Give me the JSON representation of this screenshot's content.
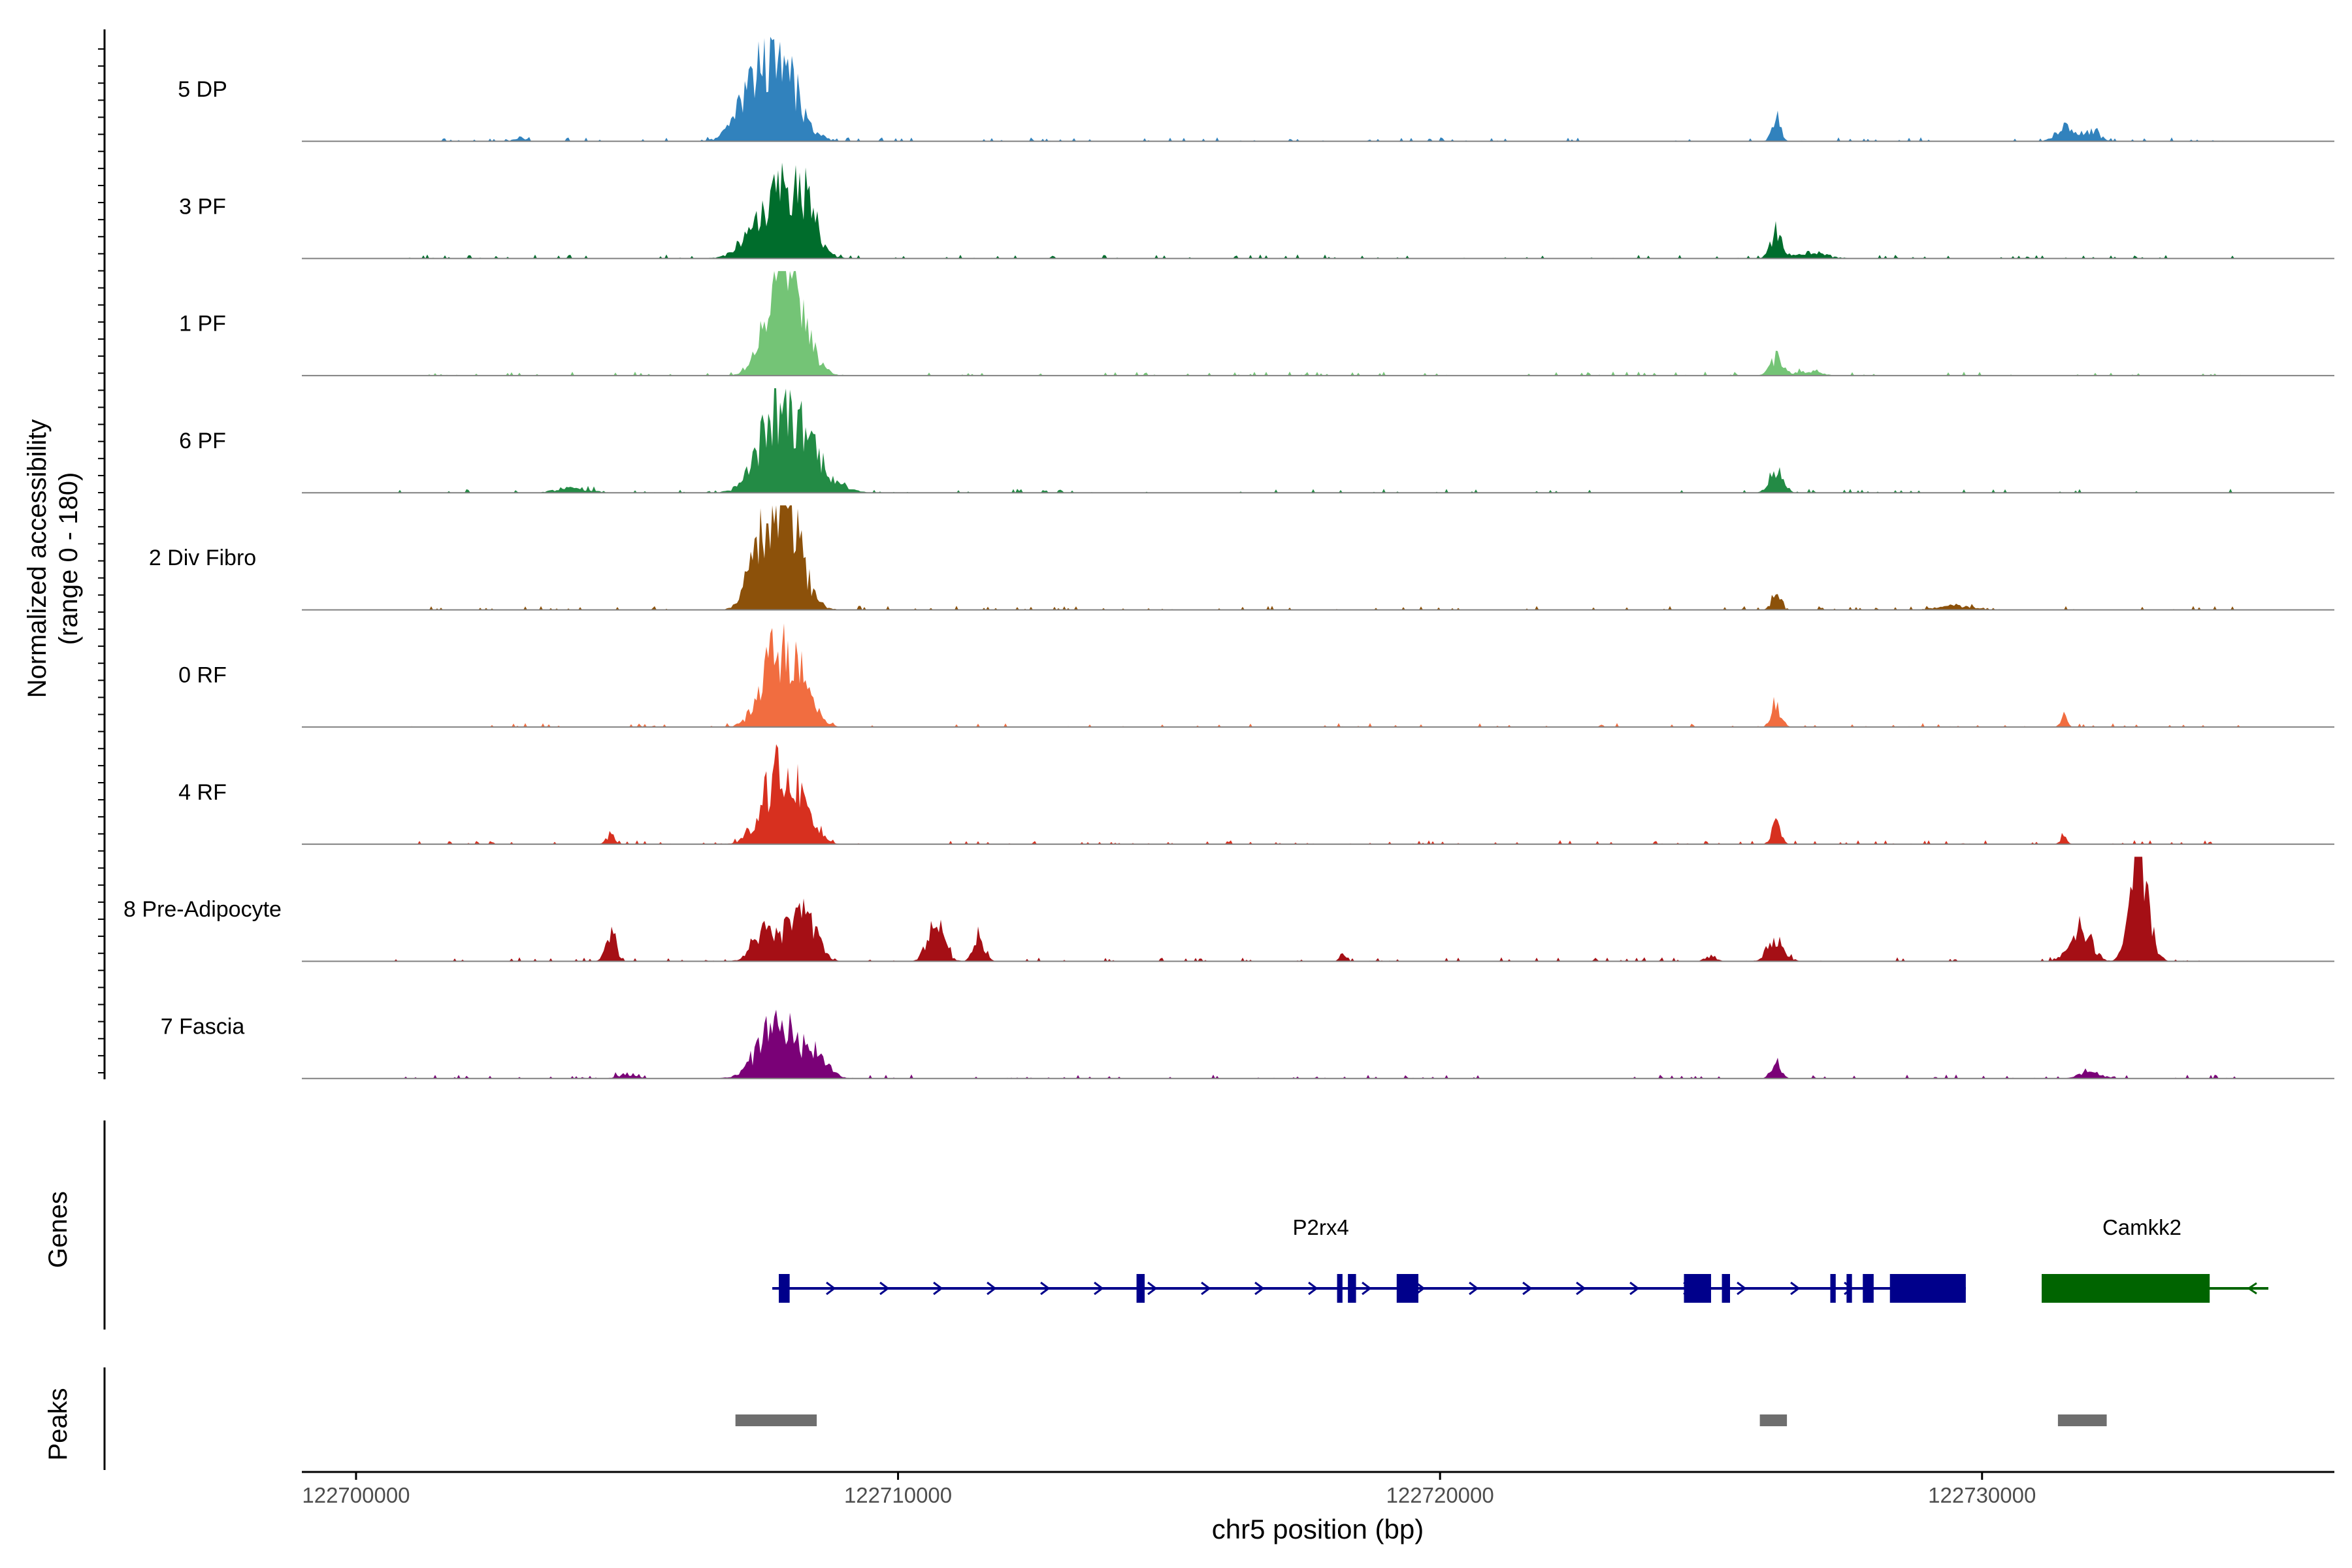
{
  "chart_data": {
    "type": "area",
    "title": "",
    "xlabel": "chr5 position (bp)",
    "ylabel_line1": "Normalized accessibility",
    "ylabel_line2": "(range 0 - 180)",
    "ylim": [
      0,
      180
    ],
    "xlim": [
      122699000,
      122736500
    ],
    "x_ticks": [
      "122700000",
      "122710000",
      "122720000",
      "122730000"
    ],
    "x_tick_values": [
      122700000,
      122710000,
      122720000,
      122730000
    ],
    "track_labels": {
      "genes": "Genes",
      "peaks": "Peaks"
    },
    "series": [
      {
        "name": "5 DP",
        "color": "#3182bd",
        "peaks": [
          [
            122707800,
            130,
            350
          ],
          [
            122707300,
            60,
            300
          ],
          [
            122726200,
            40,
            80
          ],
          [
            122731500,
            25,
            150
          ],
          [
            122732000,
            20,
            150
          ],
          [
            122703000,
            8,
            80
          ]
        ]
      },
      {
        "name": "3 PF",
        "color": "#006d2c",
        "peaks": [
          [
            122707800,
            110,
            400
          ],
          [
            122708300,
            60,
            200
          ],
          [
            122726200,
            45,
            100
          ],
          [
            122726800,
            10,
            300
          ]
        ]
      },
      {
        "name": "1 PF",
        "color": "#74c476",
        "peaks": [
          [
            122707800,
            150,
            280
          ],
          [
            122708200,
            70,
            250
          ],
          [
            122726200,
            30,
            120
          ],
          [
            122726800,
            8,
            200
          ]
        ]
      },
      {
        "name": "6 PF",
        "color": "#238b45",
        "peaks": [
          [
            122707800,
            140,
            350
          ],
          [
            122708400,
            60,
            250
          ],
          [
            122726200,
            40,
            120
          ],
          [
            122704000,
            8,
            300
          ],
          [
            122709000,
            10,
            200
          ]
        ]
      },
      {
        "name": "2 Div Fibro",
        "color": "#8c510a",
        "peaks": [
          [
            122707900,
            170,
            300
          ],
          [
            122707500,
            80,
            250
          ],
          [
            122726200,
            30,
            80
          ],
          [
            122729500,
            8,
            300
          ]
        ]
      },
      {
        "name": "0 RF",
        "color": "#f16d40",
        "peaks": [
          [
            122707800,
            130,
            300
          ],
          [
            122708300,
            50,
            200
          ],
          [
            122726200,
            40,
            90
          ],
          [
            122731500,
            20,
            60
          ]
        ]
      },
      {
        "name": "4 RF",
        "color": "#d7301f",
        "peaks": [
          [
            122707800,
            120,
            300
          ],
          [
            122708300,
            50,
            200
          ],
          [
            122704700,
            15,
            80
          ],
          [
            122726200,
            35,
            80
          ],
          [
            122731500,
            15,
            60
          ]
        ]
      },
      {
        "name": "8 Pre-Adipocyte",
        "color": "#a50f15",
        "peaks": [
          [
            122704700,
            55,
            90
          ],
          [
            122707500,
            50,
            200
          ],
          [
            122708200,
            90,
            250
          ],
          [
            122710700,
            70,
            150
          ],
          [
            122711500,
            45,
            100
          ],
          [
            122726200,
            40,
            150
          ],
          [
            122731800,
            60,
            200
          ],
          [
            122732800,
            180,
            120
          ],
          [
            122733000,
            90,
            150
          ],
          [
            122718200,
            12,
            60
          ],
          [
            122725000,
            10,
            100
          ]
        ]
      },
      {
        "name": "7 Fascia",
        "color": "#7a0177",
        "peaks": [
          [
            122707800,
            100,
            350
          ],
          [
            122708500,
            40,
            200
          ],
          [
            122726200,
            30,
            90
          ],
          [
            122732000,
            10,
            200
          ],
          [
            122705000,
            8,
            150
          ]
        ]
      }
    ],
    "genes": [
      {
        "name": "P2rx4",
        "color": "#00008b",
        "strand": "+",
        "start": 122707800,
        "end": 122729700,
        "exons": [
          [
            122707800,
            122708000
          ],
          [
            122714400,
            122714550
          ],
          [
            122718100,
            122718200
          ],
          [
            122718300,
            122718450
          ],
          [
            122719200,
            122719600
          ],
          [
            122724500,
            122725000
          ],
          [
            122725200,
            122725350
          ],
          [
            122727200,
            122727300
          ],
          [
            122727500,
            122727600
          ],
          [
            122727800,
            122728000
          ],
          [
            122728300,
            122729700
          ]
        ]
      },
      {
        "name": "Camkk2",
        "color": "#006400",
        "strand": "-",
        "start": 122731100,
        "end": 122734800,
        "exons": [
          [
            122731100,
            122734200
          ]
        ]
      }
    ],
    "peak_regions": [
      [
        122707000,
        122708500
      ],
      [
        122725900,
        122726400
      ],
      [
        122731400,
        122732300
      ]
    ]
  }
}
